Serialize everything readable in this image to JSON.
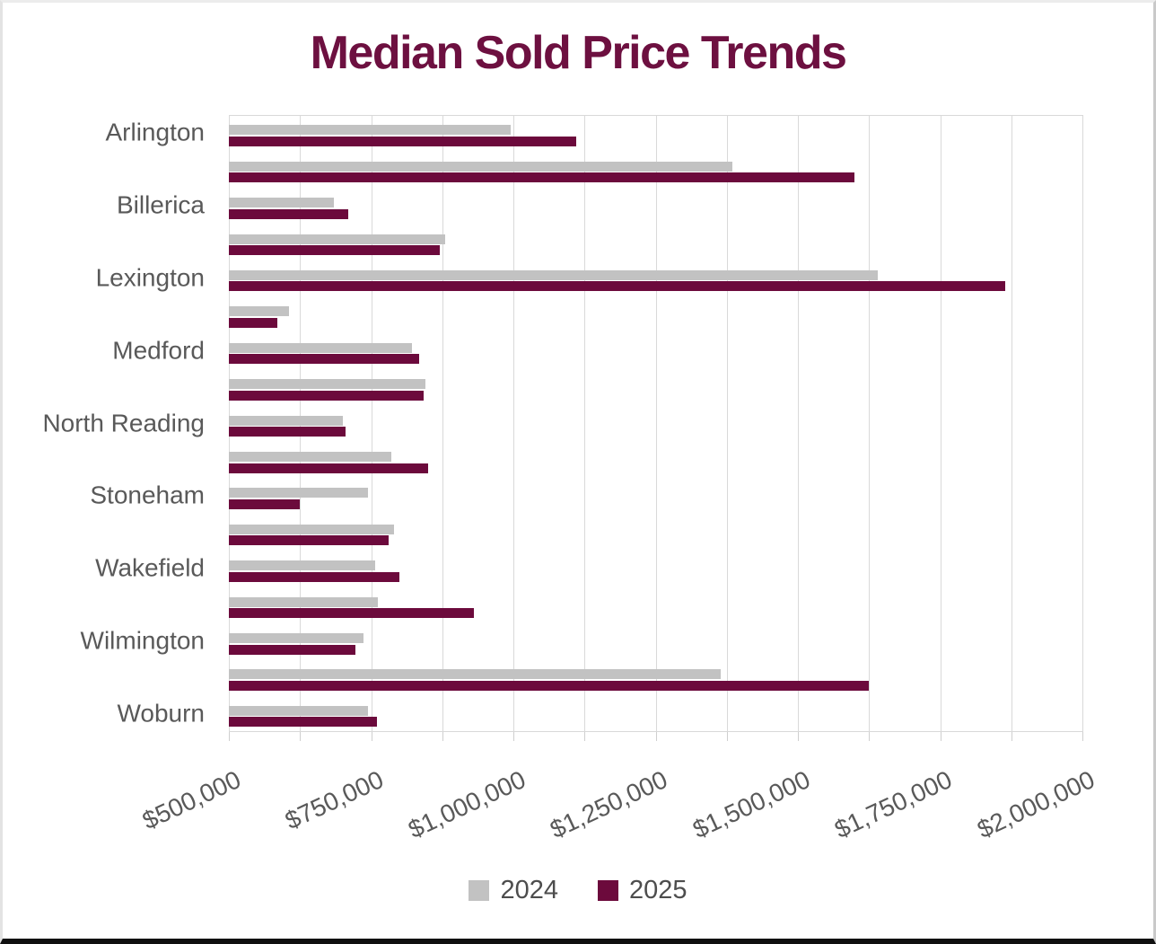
{
  "chart_data": {
    "type": "bar",
    "orientation": "horizontal",
    "title": "Median Sold Price Trends",
    "categories": [
      "Arlington",
      "",
      "Billerica",
      "",
      "Lexington",
      "",
      "Medford",
      "",
      "North Reading",
      "",
      "Stoneham",
      "",
      "Wakefield",
      "",
      "Wilmington",
      "",
      "Woburn"
    ],
    "series": [
      {
        "name": "2024",
        "color": "#C2C2C2",
        "values": [
          995000,
          1385000,
          685000,
          880000,
          1640000,
          605000,
          822000,
          845000,
          700000,
          785000,
          745000,
          790000,
          757000,
          762000,
          737000,
          1365000,
          745000
        ]
      },
      {
        "name": "2025",
        "color": "#6C0A3C",
        "values": [
          1110000,
          1600000,
          710000,
          870000,
          1865000,
          585000,
          835000,
          843000,
          705000,
          850000,
          625000,
          780000,
          800000,
          930000,
          722000,
          1625000,
          760000
        ]
      }
    ],
    "xlim": [
      500000,
      2000000
    ],
    "x_tick_step": 125000,
    "x_label_step": 250000,
    "x_tick_labels": [
      "$500,000",
      "$750,000",
      "$1,000,000",
      "$1,250,000",
      "$1,500,000",
      "$1,750,000",
      "$2,000,000"
    ],
    "grid": true,
    "legend_position": "bottom"
  },
  "colors": {
    "title": "#6D1040",
    "axis_text": "#595959",
    "legend_text": "#4D4D4D",
    "gridline": "#D9D9D9",
    "tick": "#CFCFCF",
    "background": "#FFFFFF"
  }
}
